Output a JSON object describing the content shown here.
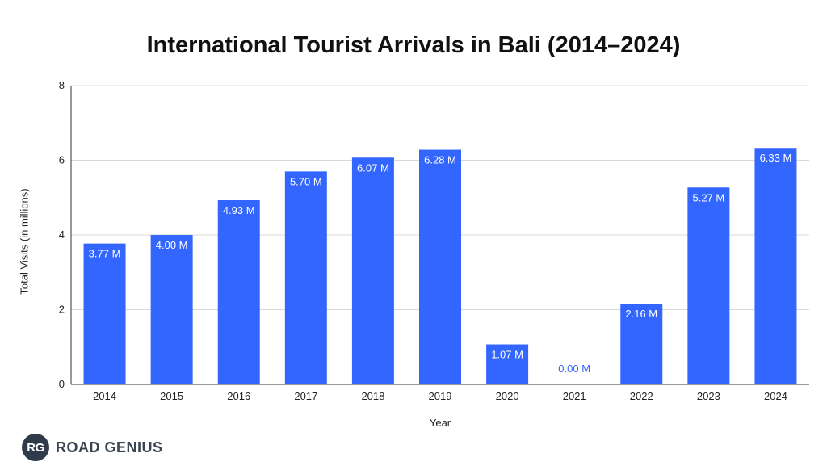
{
  "chart_data": {
    "type": "bar",
    "title": "International Tourist Arrivals in Bali (2014–2024)",
    "xlabel": "Year",
    "ylabel": "Total Visits (in millions)",
    "categories": [
      "2014",
      "2015",
      "2016",
      "2017",
      "2018",
      "2019",
      "2020",
      "2021",
      "2022",
      "2023",
      "2024"
    ],
    "values": [
      3.77,
      4.0,
      4.93,
      5.7,
      6.07,
      6.28,
      1.07,
      0.0,
      2.16,
      5.27,
      6.33
    ],
    "data_labels": [
      "3.77 M",
      "4.00 M",
      "4.93 M",
      "5.70 M",
      "6.07 M",
      "6.28 M",
      "1.07 M",
      "0.00 M",
      "2.16 M",
      "5.27 M",
      "6.33 M"
    ],
    "ylim": [
      0,
      8
    ],
    "yticks": [
      0,
      2,
      4,
      6,
      8
    ],
    "grid": true,
    "legend": "none",
    "bar_color": "#3366ff",
    "label_color_inside": "#ffffff",
    "label_color_outside": "#3366ff"
  },
  "brand": {
    "logo_text": "RG",
    "name": "ROAD GENIUS"
  }
}
